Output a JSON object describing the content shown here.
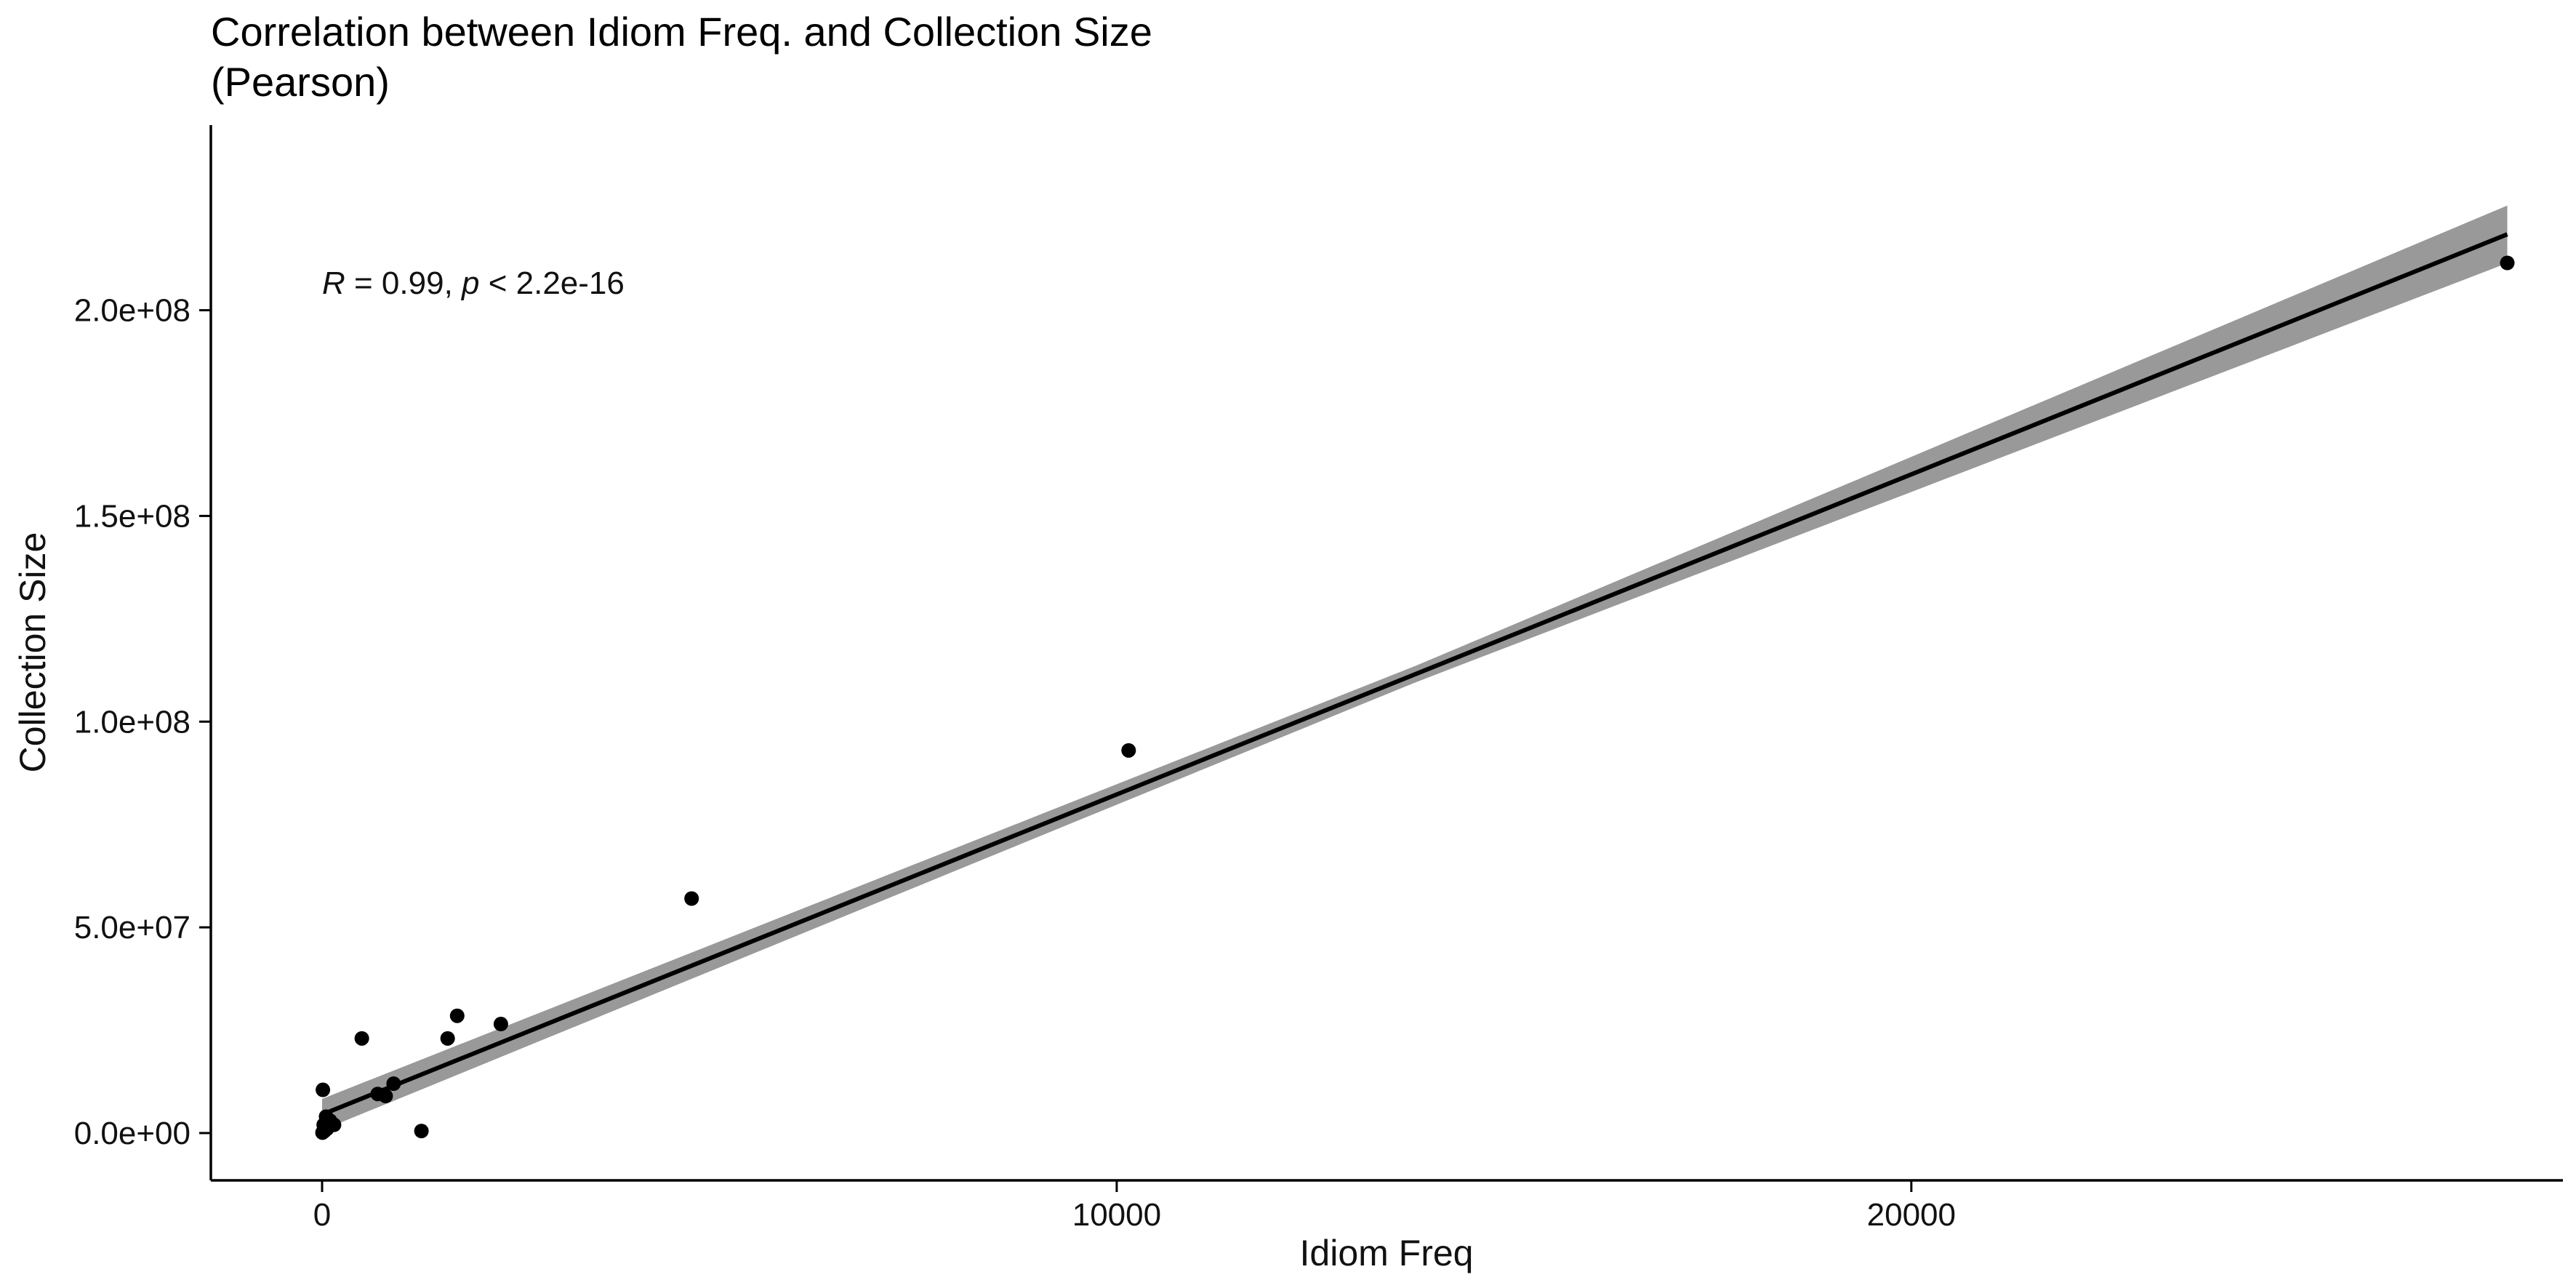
{
  "chart_data": {
    "type": "scatter",
    "title_lines": [
      "Correlation between Idiom Freq. and Collection Size",
      "(Pearson)"
    ],
    "xlabel": "Idiom Freq",
    "ylabel": "Collection Size",
    "xlim": [
      -1400,
      28200
    ],
    "ylim": [
      -11500000,
      245000000
    ],
    "x_ticks": [
      0,
      10000,
      20000
    ],
    "x_tick_labels": [
      "0",
      "10000",
      "20000"
    ],
    "y_ticks": [
      0,
      50000000,
      100000000,
      150000000,
      200000000
    ],
    "y_tick_labels": [
      "0.0e+00",
      "5.0e+07",
      "1.0e+08",
      "1.5e+08",
      "2.0e+08"
    ],
    "grid": false,
    "annotation": {
      "r_symbol": "R",
      "r_value": " = 0.99, ",
      "p_symbol": "p",
      "p_value": " < 2.2e-16",
      "x": 0,
      "y": 204000000
    },
    "series": [
      {
        "points": [
          {
            "x": 27500,
            "y": 211500000
          },
          {
            "x": 10150,
            "y": 93000000
          },
          {
            "x": 4650,
            "y": 57000000
          },
          {
            "x": 2250,
            "y": 26500000
          },
          {
            "x": 1700,
            "y": 28500000
          },
          {
            "x": 1580,
            "y": 23000000
          },
          {
            "x": 500,
            "y": 23000000
          },
          {
            "x": 1250,
            "y": 500000
          },
          {
            "x": 900,
            "y": 12000000
          },
          {
            "x": 800,
            "y": 9000000
          },
          {
            "x": 700,
            "y": 9500000
          },
          {
            "x": 10,
            "y": 10500000
          },
          {
            "x": 150,
            "y": 2000000
          },
          {
            "x": 100,
            "y": 3000000
          },
          {
            "x": 60,
            "y": 1000000
          },
          {
            "x": 30,
            "y": 500000
          },
          {
            "x": 20,
            "y": 2000000
          },
          {
            "x": 5,
            "y": 100000
          },
          {
            "x": 50,
            "y": 4000000
          }
        ]
      }
    ],
    "fit": {
      "x_start": 0,
      "x_end": 27500,
      "intercept": 4500000,
      "slope": 7780,
      "ci_halfwidth_start": 3800000,
      "ci_halfwidth_mid": 2000000,
      "ci_halfwidth_end": 7000000
    }
  }
}
